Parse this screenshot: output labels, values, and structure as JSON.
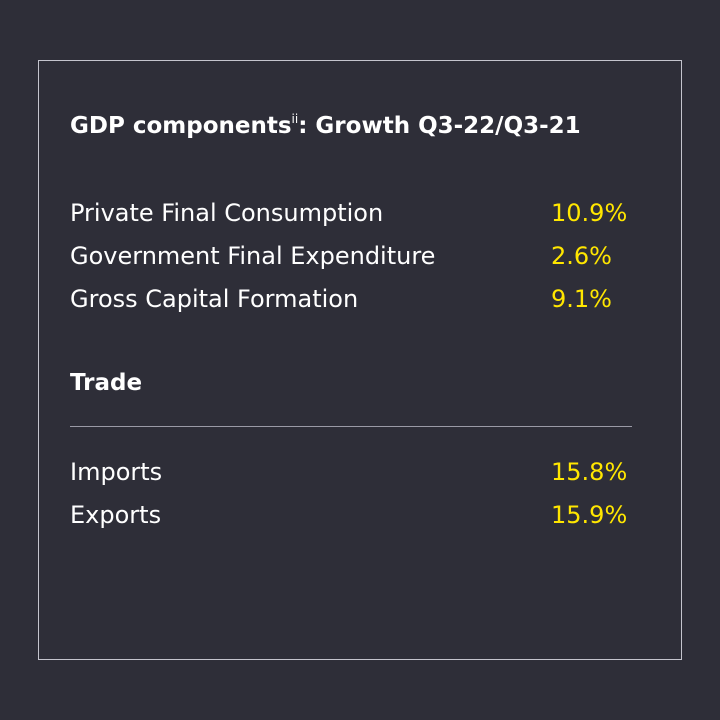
{
  "title": {
    "text": "GDP components",
    "superscript": "ii",
    "suffix": ": Growth Q3-22/Q3-21"
  },
  "components": [
    {
      "label": "Private Final Consumption",
      "value": "10.9%"
    },
    {
      "label": "Government Final Expenditure",
      "value": "2.6%"
    },
    {
      "label": "Gross Capital Formation",
      "value": "9.1%"
    }
  ],
  "trade": {
    "title": "Trade",
    "items": [
      {
        "label": "Imports",
        "value": "15.8%"
      },
      {
        "label": "Exports",
        "value": "15.9%"
      }
    ]
  },
  "colors": {
    "background": "#2e2e38",
    "text": "#ffffff",
    "accent": "#ffe600",
    "border": "#c4c4cd"
  }
}
